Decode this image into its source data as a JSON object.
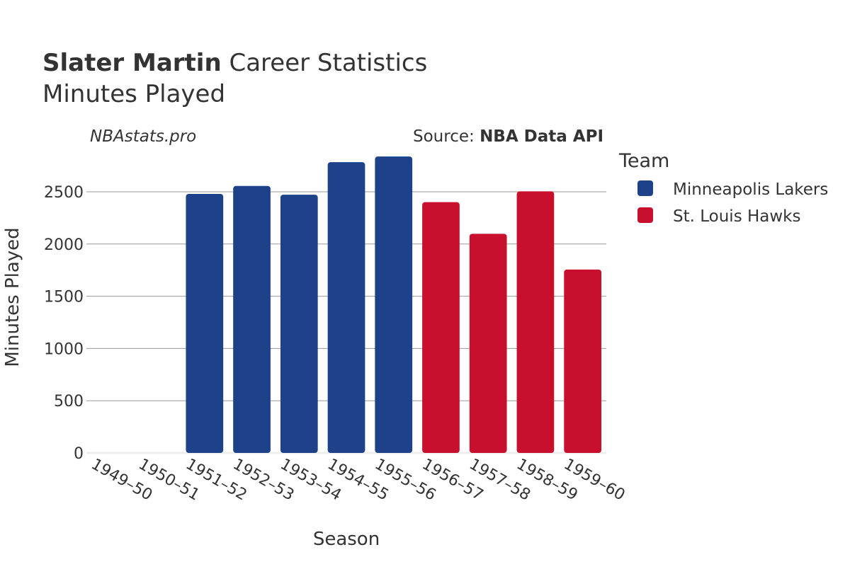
{
  "header": {
    "title_bold": "Slater Martin",
    "title_rest": " Career Statistics",
    "subtitle": "Minutes Played",
    "watermark": "NBAstats.pro",
    "source_prefix": "Source: ",
    "source_bold": "NBA Data API"
  },
  "legend": {
    "title": "Team",
    "items": [
      {
        "label": "Minneapolis Lakers",
        "color": "#1d428a"
      },
      {
        "label": "St. Louis Hawks",
        "color": "#c8102e"
      }
    ]
  },
  "chart_data": {
    "type": "bar",
    "title": "Slater Martin Career Statistics",
    "subtitle": "Minutes Played",
    "xlabel": "Season",
    "ylabel": "Minutes Played",
    "ylim": [
      0,
      2900
    ],
    "yticks": [
      0,
      500,
      1000,
      1500,
      2000,
      2500
    ],
    "grid": true,
    "legend_position": "right",
    "categories": [
      "1949–50",
      "1950–51",
      "1951–52",
      "1952–53",
      "1953–54",
      "1954–55",
      "1955–56",
      "1956–57",
      "1957–58",
      "1958–59",
      "1959–60"
    ],
    "series": [
      {
        "name": "Minneapolis Lakers",
        "color": "#1d428a",
        "values": [
          null,
          null,
          2480,
          2556,
          2472,
          2784,
          2838,
          null,
          null,
          null,
          null
        ]
      },
      {
        "name": "St. Louis Hawks",
        "color": "#c8102e",
        "values": [
          null,
          null,
          null,
          null,
          null,
          null,
          null,
          2401,
          2098,
          2504,
          1756
        ]
      }
    ]
  }
}
